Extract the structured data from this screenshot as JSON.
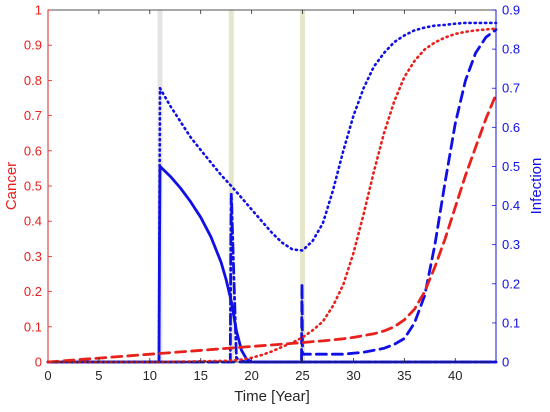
{
  "chart_data": {
    "type": "line",
    "title": "",
    "xlabel": "Time [Year]",
    "xlim": [
      0,
      44
    ],
    "xticks": [
      0,
      5,
      10,
      15,
      20,
      25,
      30,
      35,
      40
    ],
    "left_axis": {
      "label": "Cancer",
      "color": "#e8211c",
      "ylim": [
        0,
        1
      ],
      "ticks": [
        "0",
        "0.1",
        "0.2",
        "0.3",
        "0.4",
        "0.5",
        "0.6",
        "0.7",
        "0.8",
        "0.9",
        "1"
      ]
    },
    "right_axis": {
      "label": "Infection",
      "color": "#1010e6",
      "ylim": [
        0,
        0.9
      ],
      "ticks": [
        "0",
        "0.1",
        "0.2",
        "0.3",
        "0.4",
        "0.5",
        "0.6",
        "0.7",
        "0.8",
        "0.9"
      ]
    },
    "intervention_bands": [
      {
        "x": 11,
        "color": "#e4e4e4"
      },
      {
        "x": 18,
        "color": "#e6e6cc"
      },
      {
        "x": 25,
        "color": "#e6e6cc"
      }
    ],
    "series": [
      {
        "axis": "right",
        "color": "#1010e6",
        "style": "dotted",
        "x": [
          0,
          10.9,
          10.95,
          11,
          12,
          13,
          14,
          15,
          16,
          17,
          18,
          19,
          20,
          21,
          22,
          23,
          24,
          25,
          26,
          27,
          28,
          29,
          30,
          31,
          32,
          33,
          34,
          35,
          36,
          37,
          38,
          39,
          40,
          41,
          42,
          43,
          44
        ],
        "y": [
          0,
          0,
          0.4,
          0.7,
          0.655,
          0.615,
          0.575,
          0.542,
          0.51,
          0.478,
          0.45,
          0.42,
          0.39,
          0.36,
          0.33,
          0.305,
          0.288,
          0.285,
          0.31,
          0.355,
          0.44,
          0.54,
          0.63,
          0.7,
          0.755,
          0.79,
          0.818,
          0.835,
          0.848,
          0.855,
          0.86,
          0.862,
          0.865,
          0.867,
          0.867,
          0.867,
          0.867
        ]
      },
      {
        "axis": "right",
        "color": "#1010e6",
        "style": "solid",
        "x": [
          0,
          10.9,
          10.95,
          11,
          12,
          13,
          14,
          15,
          16,
          17,
          17.5,
          18,
          18.5,
          19,
          19.5,
          20,
          44
        ],
        "y": [
          0,
          0,
          0.3,
          0.5,
          0.475,
          0.445,
          0.41,
          0.37,
          0.32,
          0.255,
          0.21,
          0.155,
          0.08,
          0.03,
          0.008,
          0,
          0
        ]
      },
      {
        "axis": "right",
        "color": "#1010e6",
        "style": "dashdot",
        "x": [
          0,
          17.9,
          17.95,
          18,
          18.5,
          19,
          19.5,
          20,
          44
        ],
        "y": [
          0,
          0,
          0.3,
          0.43,
          0.01,
          0.003,
          0,
          0,
          0
        ]
      },
      {
        "axis": "right",
        "color": "#1010e6",
        "style": "dashed",
        "x": [
          0,
          24.9,
          24.95,
          25,
          27,
          29,
          31,
          33,
          34,
          35,
          36,
          37,
          38,
          39,
          40,
          41,
          42,
          43,
          44
        ],
        "y": [
          0,
          0,
          0.2,
          0.02,
          0.02,
          0.02,
          0.025,
          0.035,
          0.045,
          0.06,
          0.1,
          0.17,
          0.3,
          0.46,
          0.61,
          0.72,
          0.79,
          0.83,
          0.85
        ]
      },
      {
        "axis": "left",
        "color": "#e8211c",
        "style": "dotted",
        "x": [
          0,
          11,
          12,
          13,
          14,
          15,
          16,
          17,
          18,
          19,
          20,
          21,
          22,
          23,
          24,
          25,
          26,
          27,
          28,
          29,
          30,
          31,
          32,
          33,
          34,
          35,
          36,
          37,
          38,
          39,
          40,
          41,
          42,
          43,
          44
        ],
        "y": [
          0,
          0,
          0.0005,
          0.001,
          0.0015,
          0.002,
          0.0025,
          0.003,
          0.004,
          0.007,
          0.012,
          0.02,
          0.03,
          0.043,
          0.055,
          0.07,
          0.09,
          0.115,
          0.16,
          0.22,
          0.31,
          0.42,
          0.54,
          0.65,
          0.74,
          0.81,
          0.855,
          0.888,
          0.908,
          0.922,
          0.932,
          0.938,
          0.942,
          0.945,
          0.947
        ]
      },
      {
        "axis": "left",
        "color": "#e8211c",
        "style": "dashed",
        "x": [
          0,
          25,
          26,
          27,
          28,
          29,
          30,
          31,
          32,
          33,
          34,
          35,
          36,
          37,
          38,
          39,
          40,
          41,
          42,
          43,
          44
        ],
        "y": [
          0,
          0.055,
          0.058,
          0.06,
          0.063,
          0.066,
          0.07,
          0.075,
          0.08,
          0.088,
          0.1,
          0.12,
          0.15,
          0.2,
          0.27,
          0.35,
          0.44,
          0.53,
          0.61,
          0.69,
          0.76
        ]
      }
    ]
  }
}
